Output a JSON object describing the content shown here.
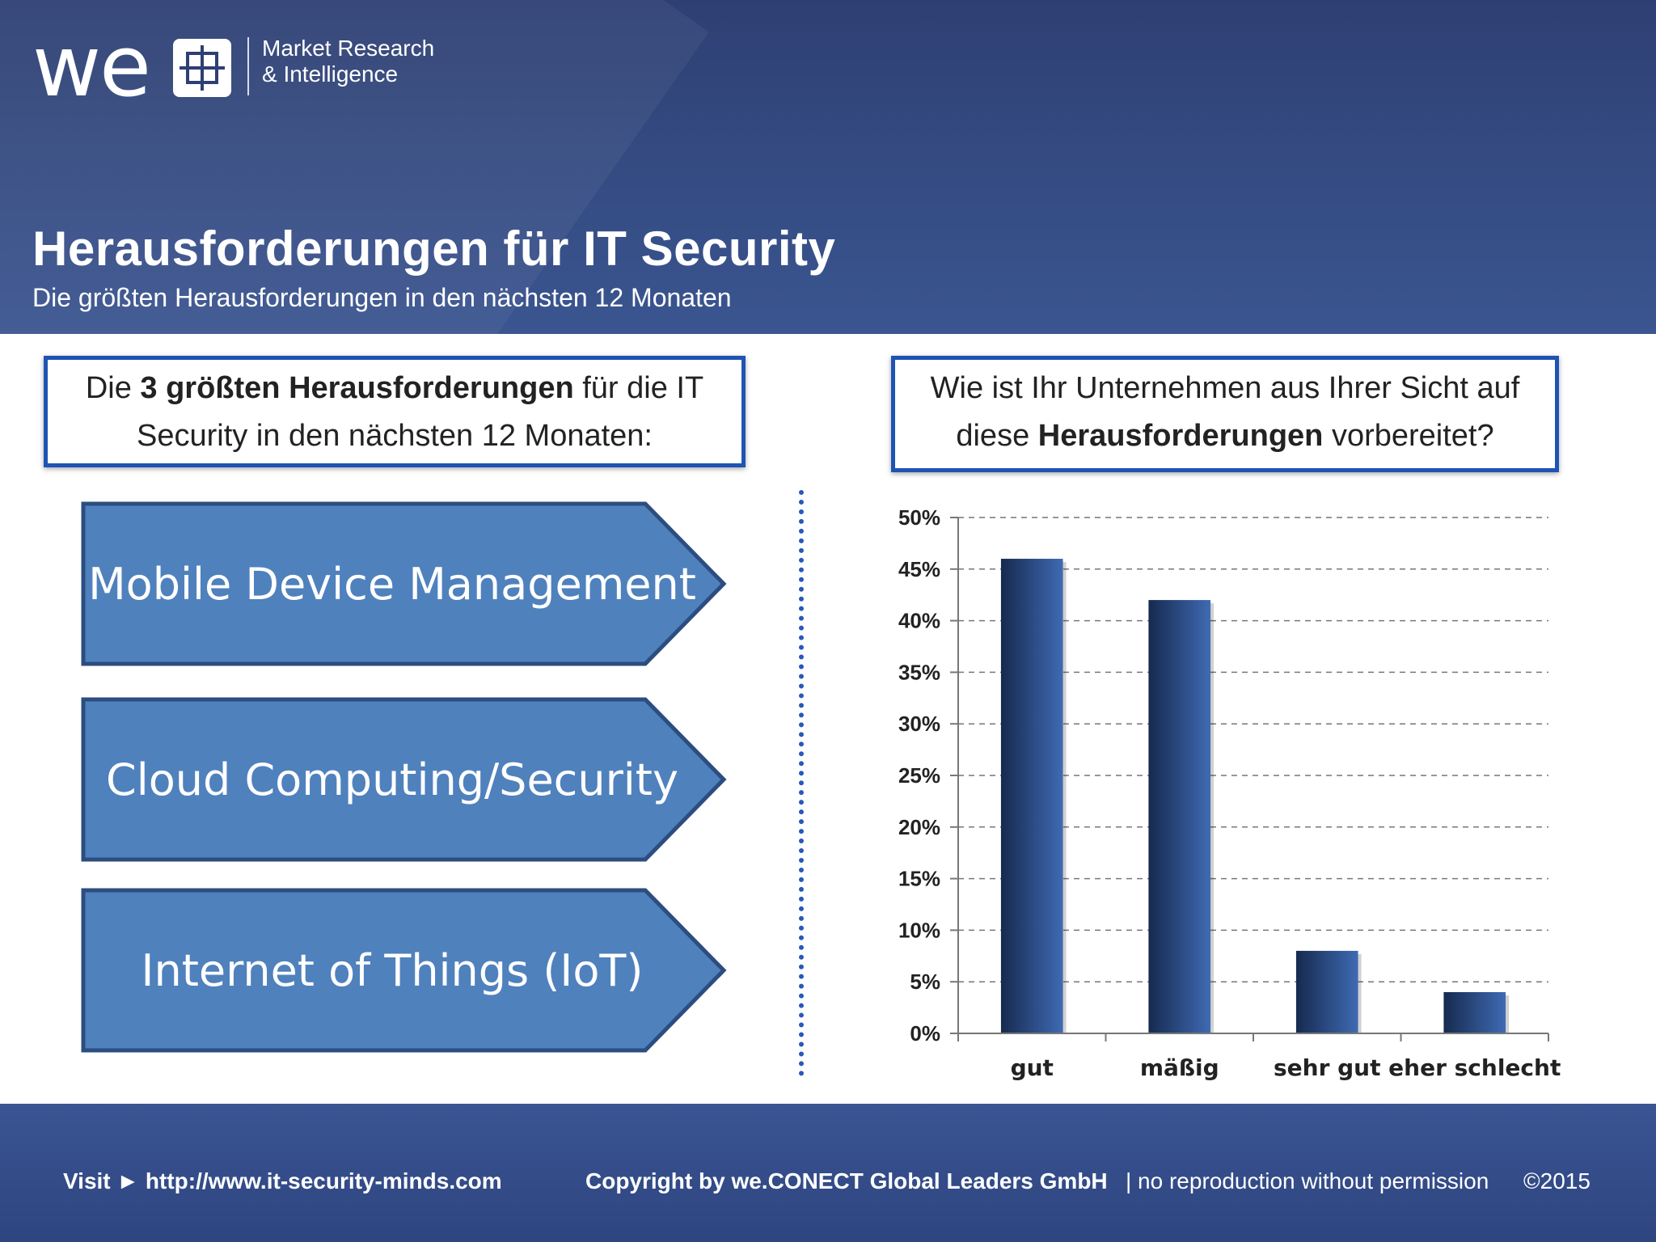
{
  "logo": {
    "wordmark": "we",
    "tagline_line1": "Market Research",
    "tagline_line2": "& Intelligence"
  },
  "header": {
    "title": "Herausforderungen für IT Security",
    "subtitle": "Die größten Herausforderungen in den nächsten 12 Monaten"
  },
  "left_box": {
    "pre": "Die ",
    "bold": "3 größten Herausforderungen",
    "post": " für die IT",
    "line2": "Security in den nächsten 12 Monaten:"
  },
  "challenges": [
    "Mobile Device Management",
    "Cloud Computing/Security",
    "Internet of Things (IoT)"
  ],
  "right_box": {
    "line1": "Wie ist Ihr Unternehmen aus Ihrer Sicht auf",
    "pre2": "diese ",
    "bold2": "Herausforderungen",
    "post2": " vorbereitet?"
  },
  "chart_data": {
    "type": "bar",
    "categories": [
      "gut",
      "mäßig",
      "sehr gut",
      "eher schlecht"
    ],
    "values": [
      46,
      42,
      8,
      4
    ],
    "ylim": [
      0,
      50
    ],
    "yticks": [
      0,
      5,
      10,
      15,
      20,
      25,
      30,
      35,
      40,
      45,
      50
    ],
    "ytick_labels": [
      "0%",
      "5%",
      "10%",
      "15%",
      "20%",
      "25%",
      "30%",
      "35%",
      "40%",
      "45%",
      "50%"
    ],
    "grid": true,
    "title": "",
    "xlabel": "",
    "ylabel": "",
    "bar_color_dark": "#162a4f",
    "bar_color_light": "#3f6ab3"
  },
  "footer": {
    "visit": "Visit ► http://www.it-security-minds.com",
    "copyright": "Copyright by we.CONECT Global Leaders GmbH",
    "norep": "| no reproduction without permission",
    "year": "©2015"
  },
  "colors": {
    "header_bg": "#344a80",
    "box_border": "#1f53b4",
    "arrow_fill": "#4f81bd",
    "arrow_stroke": "#2c4d7f"
  }
}
